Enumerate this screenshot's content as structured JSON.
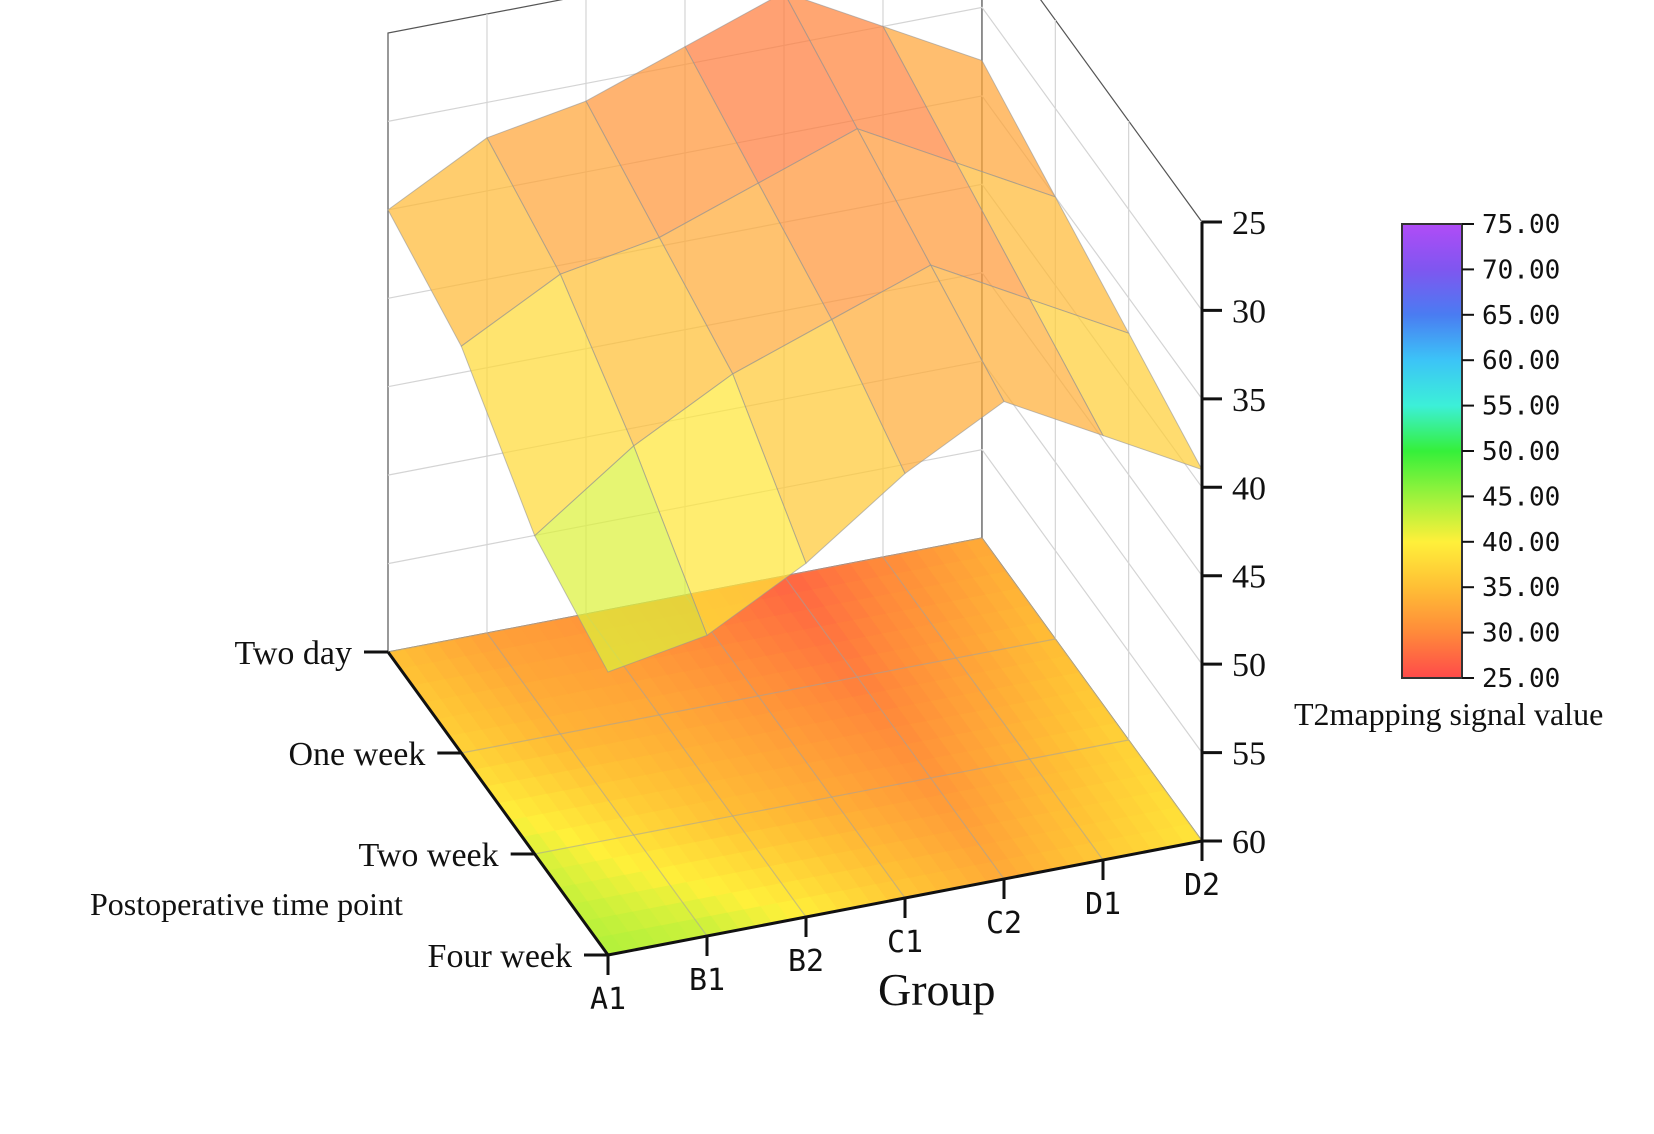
{
  "chart_data": {
    "type": "surface3d",
    "x_categories": [
      "A1",
      "B1",
      "B2",
      "C1",
      "C2",
      "D1",
      "D2"
    ],
    "y_categories": [
      "Two day",
      "One week",
      "Two week",
      "Four week"
    ],
    "xlabel": "Group",
    "ylabel": "Postoperative time point",
    "zlabel": "",
    "z_ticks": [
      "25",
      "30",
      "35",
      "40",
      "45",
      "50",
      "55",
      "60"
    ],
    "zlim": [
      25,
      60
    ],
    "z_inverted": true,
    "z_values": [
      [
        35,
        32,
        31,
        29,
        27,
        30,
        33
      ],
      [
        37,
        34,
        33,
        31,
        29,
        32,
        35
      ],
      [
        42,
        38,
        35,
        33,
        31,
        34,
        37
      ],
      [
        44,
        43,
        40,
        36,
        33,
        36,
        39
      ]
    ],
    "colorbar": {
      "title": "T2mapping signal value",
      "ticks": [
        "75.00",
        "70.00",
        "65.00",
        "60.00",
        "55.00",
        "50.00",
        "45.00",
        "40.00",
        "35.00",
        "30.00",
        "25.00"
      ],
      "range": [
        25,
        75
      ],
      "colors": [
        "#ff4a4a",
        "#ff8a3a",
        "#ffbf35",
        "#fff03a",
        "#9cf23c",
        "#35f03a",
        "#3cf0d8",
        "#3cc4f7",
        "#4a7cf2",
        "#7f56f0",
        "#b04cf7"
      ]
    },
    "grid": true
  }
}
